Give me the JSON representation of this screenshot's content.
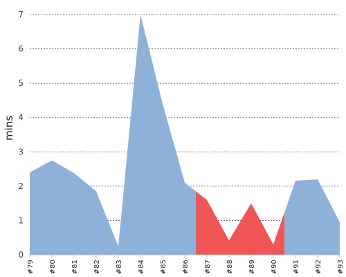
{
  "chart_data": {
    "type": "area",
    "categories": [
      "#79",
      "#80",
      "#81",
      "#82",
      "#83",
      "#84",
      "#85",
      "#86",
      "#87",
      "#88",
      "#89",
      "#90",
      "#91",
      "#92",
      "#93"
    ],
    "values": [
      2.4,
      2.75,
      2.38,
      1.85,
      0.25,
      7.0,
      4.4,
      2.1,
      1.6,
      0.42,
      1.5,
      0.3,
      2.16,
      2.2,
      0.95
    ],
    "highlight_range": [
      "#86.5",
      "#90.5"
    ],
    "highlight_start_index": 7.5,
    "highlight_end_index": 11.5,
    "ylabel": "mins",
    "xlabel": "",
    "ylim": [
      0,
      7
    ],
    "yticks": [
      0,
      1,
      2,
      3,
      4,
      5,
      6,
      7
    ],
    "grid": true,
    "colors": {
      "base": "#8eb1da",
      "highlight": "#f05656"
    }
  }
}
